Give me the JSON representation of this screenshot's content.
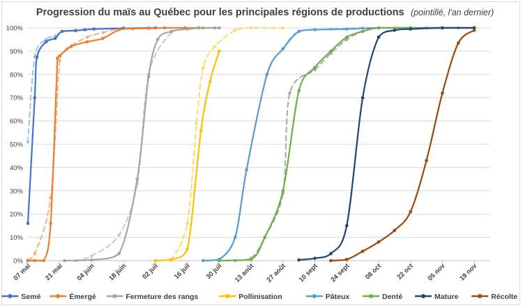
{
  "chart_data": {
    "type": "line",
    "title": "Progression du maïs au Québec pour les principales régions de productions",
    "subtitle": "(pointillé, l'an dernier)",
    "xlabel": "",
    "ylabel": "",
    "ylim": [
      0,
      100
    ],
    "xlim": [
      0,
      203
    ],
    "yticks": [
      "0%",
      "10%",
      "20%",
      "30%",
      "40%",
      "50%",
      "60%",
      "70%",
      "80%",
      "90%",
      "100%"
    ],
    "xticks": [
      {
        "label": "07 mai",
        "x": 0
      },
      {
        "label": "21 mai",
        "x": 14
      },
      {
        "label": "04 juin",
        "x": 28
      },
      {
        "label": "18 juin",
        "x": 42
      },
      {
        "label": "02 juil",
        "x": 56
      },
      {
        "label": "16 juil",
        "x": 70
      },
      {
        "label": "30 juil",
        "x": 84
      },
      {
        "label": "13 août",
        "x": 98
      },
      {
        "label": "27 août",
        "x": 112
      },
      {
        "label": "10 sept",
        "x": 126
      },
      {
        "label": "24 sept",
        "x": 140
      },
      {
        "label": "08 oct",
        "x": 154
      },
      {
        "label": "22 oct",
        "x": 168
      },
      {
        "label": "05 nov",
        "x": 182
      },
      {
        "label": "19 nov",
        "x": 196
      }
    ],
    "grid": true,
    "legend_position": "bottom",
    "series": [
      {
        "name": "Semé",
        "color": "#4472C4",
        "style": "solid",
        "points": [
          [
            0,
            16
          ],
          [
            3,
            70
          ],
          [
            4,
            87.5
          ],
          [
            8,
            94
          ],
          [
            12,
            95.5
          ],
          [
            15,
            98.5
          ],
          [
            21,
            98.8
          ],
          [
            25,
            99.2
          ],
          [
            29,
            99.5
          ],
          [
            42,
            99.8
          ],
          [
            56,
            100
          ]
        ]
      },
      {
        "name": "Semé",
        "color": "#9DC3E6",
        "style": "dashed",
        "legend": false,
        "points": [
          [
            0,
            51
          ],
          [
            3,
            87.5
          ],
          [
            8,
            95
          ],
          [
            12,
            96.5
          ],
          [
            15,
            98.5
          ],
          [
            21,
            99
          ],
          [
            29,
            99.5
          ],
          [
            42,
            100
          ]
        ]
      },
      {
        "name": "Émergé",
        "color": "#ED7D31",
        "style": "solid",
        "points": [
          [
            0,
            0
          ],
          [
            3,
            0
          ],
          [
            7,
            0
          ],
          [
            10,
            16
          ],
          [
            13,
            87
          ],
          [
            14,
            88
          ],
          [
            19,
            92
          ],
          [
            26,
            94
          ],
          [
            33,
            95.5
          ],
          [
            40,
            99.2
          ],
          [
            46,
            99.7
          ],
          [
            53,
            99.8
          ],
          [
            60,
            100
          ],
          [
            69,
            100
          ],
          [
            75,
            100
          ],
          [
            82,
            100
          ]
        ]
      },
      {
        "name": "Émergé",
        "color": "#F4B183",
        "style": "dashed",
        "legend": false,
        "points": [
          [
            0,
            0.2
          ],
          [
            3,
            3
          ],
          [
            10,
            27
          ],
          [
            14,
            86
          ],
          [
            17,
            91
          ],
          [
            26,
            96
          ],
          [
            33,
            98
          ],
          [
            40,
            99.5
          ],
          [
            53,
            100
          ],
          [
            60,
            100
          ],
          [
            69,
            100
          ]
        ]
      },
      {
        "name": "Fermeture des rangs",
        "color": "#A5A5A5",
        "style": "solid",
        "points": [
          [
            16,
            0
          ],
          [
            28,
            0.3
          ],
          [
            40,
            3
          ],
          [
            48,
            35
          ],
          [
            53,
            79
          ],
          [
            57,
            95
          ],
          [
            63,
            98.5
          ],
          [
            70,
            99.5
          ],
          [
            77,
            100
          ],
          [
            84,
            100
          ]
        ]
      },
      {
        "name": "Fermeture des rangs",
        "color": "#C9C9C9",
        "style": "dashed",
        "legend": false,
        "points": [
          [
            21,
            0
          ],
          [
            28,
            2
          ],
          [
            40,
            11
          ],
          [
            48,
            33
          ],
          [
            53,
            80
          ],
          [
            63,
            98
          ],
          [
            70,
            99.5
          ],
          [
            84,
            100
          ]
        ]
      },
      {
        "name": "Pollinisation",
        "color": "#FFC000",
        "style": "solid",
        "points": [
          [
            56,
            0
          ],
          [
            63,
            0.5
          ],
          [
            70,
            5
          ],
          [
            76,
            56
          ],
          [
            80,
            77
          ],
          [
            84,
            90
          ]
        ]
      },
      {
        "name": "Pollinisation",
        "color": "#FFD966",
        "style": "dashed",
        "legend": false,
        "points": [
          [
            63,
            0
          ],
          [
            70,
            16
          ],
          [
            74,
            59
          ],
          [
            77,
            83
          ],
          [
            82,
            92
          ],
          [
            91,
            99
          ],
          [
            98,
            100
          ],
          [
            112,
            100
          ]
        ]
      },
      {
        "name": "Pâteux",
        "color": "#5B9BD5",
        "style": "solid",
        "points": [
          [
            77,
            0
          ],
          [
            84,
            0.5
          ],
          [
            91,
            10
          ],
          [
            96,
            39
          ],
          [
            105,
            80
          ],
          [
            112,
            91
          ],
          [
            119,
            98.5
          ],
          [
            126,
            99.2
          ],
          [
            140,
            99.5
          ],
          [
            154,
            100
          ],
          [
            168,
            100
          ],
          [
            182,
            100
          ],
          [
            196,
            100
          ]
        ]
      },
      {
        "name": "Pâteux",
        "color": "#9DC3E6",
        "style": "dashed",
        "legend": false,
        "points": [
          [
            84,
            0
          ],
          [
            91,
            10
          ],
          [
            96,
            39
          ],
          [
            105,
            80
          ],
          [
            112,
            91
          ],
          [
            119,
            98.5
          ],
          [
            133,
            99.5
          ],
          [
            147,
            100
          ],
          [
            161,
            100
          ],
          [
            175,
            100
          ],
          [
            189,
            100
          ]
        ]
      },
      {
        "name": "Denté",
        "color": "#70AD47",
        "style": "solid",
        "points": [
          [
            84,
            0
          ],
          [
            98,
            0.5
          ],
          [
            104,
            10
          ],
          [
            112,
            30
          ],
          [
            119,
            73
          ],
          [
            126,
            83
          ],
          [
            133,
            90
          ],
          [
            140,
            96
          ],
          [
            147,
            98.5
          ],
          [
            154,
            100
          ],
          [
            168,
            100
          ],
          [
            182,
            100
          ],
          [
            196,
            100
          ]
        ]
      },
      {
        "name": "Denté",
        "color": "#A9A9A9",
        "style": "dashed",
        "legend": false,
        "points": [
          [
            91,
            0
          ],
          [
            98,
            1
          ],
          [
            104,
            10
          ],
          [
            112,
            29
          ],
          [
            115,
            72
          ],
          [
            126,
            82
          ],
          [
            133,
            89
          ],
          [
            140,
            95
          ],
          [
            147,
            98.5
          ],
          [
            154,
            100
          ],
          [
            168,
            100
          ],
          [
            182,
            100
          ],
          [
            196,
            100
          ]
        ]
      },
      {
        "name": "Mature",
        "color": "#264478",
        "style": "solid",
        "points": [
          [
            119,
            0.3
          ],
          [
            126,
            1
          ],
          [
            133,
            3
          ],
          [
            140,
            15
          ],
          [
            147,
            70
          ],
          [
            154,
            96
          ],
          [
            161,
            99
          ],
          [
            168,
            99.5
          ],
          [
            182,
            100
          ],
          [
            196,
            100
          ]
        ]
      },
      {
        "name": "Mature",
        "color": "#A9A9A9",
        "style": "dashed",
        "legend": false,
        "points": [
          [
            119,
            0.3
          ],
          [
            126,
            1
          ],
          [
            133,
            3
          ],
          [
            140,
            15
          ],
          [
            147,
            70
          ],
          [
            154,
            96
          ],
          [
            161,
            99
          ],
          [
            175,
            100
          ],
          [
            189,
            100
          ],
          [
            196,
            100
          ]
        ]
      },
      {
        "name": "Récolte",
        "color": "#9E480E",
        "style": "solid",
        "points": [
          [
            133,
            0
          ],
          [
            140,
            0.5
          ],
          [
            147,
            4
          ],
          [
            154,
            8
          ],
          [
            161,
            13
          ],
          [
            168,
            21
          ],
          [
            175,
            43
          ],
          [
            182,
            72
          ],
          [
            189,
            93.5
          ],
          [
            196,
            99
          ]
        ]
      },
      {
        "name": "Récolte",
        "color": "#A9A9A9",
        "style": "dashed",
        "legend": false,
        "points": [
          [
            133,
            0
          ],
          [
            140,
            0.5
          ],
          [
            147,
            4
          ],
          [
            154,
            8
          ],
          [
            161,
            13
          ],
          [
            168,
            21
          ],
          [
            175,
            43
          ],
          [
            182,
            72
          ],
          [
            189,
            93.5
          ],
          [
            196,
            99
          ]
        ]
      }
    ],
    "legend": [
      {
        "label": "Semé",
        "color": "#4472C4"
      },
      {
        "label": "Émergé",
        "color": "#ED7D31"
      },
      {
        "label": "Fermeture des rangs",
        "color": "#A5A5A5"
      },
      {
        "label": "Pollinisation",
        "color": "#FFC000"
      },
      {
        "label": "Pâteux",
        "color": "#5B9BD5"
      },
      {
        "label": "Denté",
        "color": "#70AD47"
      },
      {
        "label": "Mature",
        "color": "#264478"
      },
      {
        "label": "Récolte",
        "color": "#9E480E"
      }
    ]
  }
}
